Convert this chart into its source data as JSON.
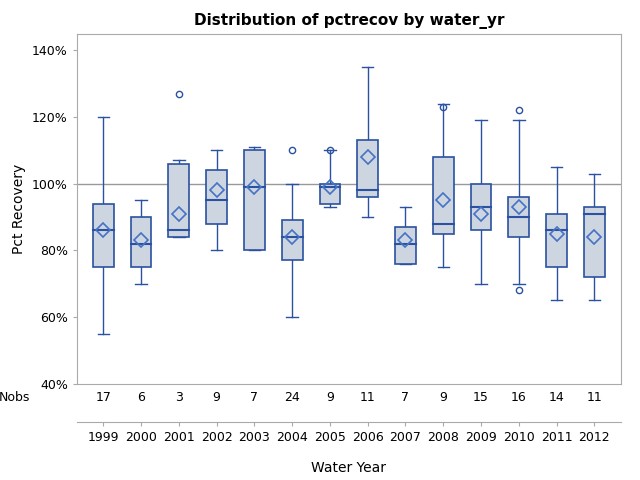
{
  "title": "Distribution of pctrecov by water_yr",
  "xlabel": "Water Year",
  "ylabel": "Pct Recovery",
  "years": [
    1999,
    2000,
    2001,
    2002,
    2003,
    2004,
    2005,
    2006,
    2007,
    2008,
    2009,
    2010,
    2011,
    2012
  ],
  "nobs": [
    17,
    6,
    3,
    9,
    7,
    24,
    9,
    11,
    7,
    9,
    15,
    16,
    14,
    11
  ],
  "q1": [
    75,
    75,
    84,
    88,
    80,
    77,
    94,
    96,
    76,
    85,
    86,
    84,
    75,
    72
  ],
  "median": [
    86,
    82,
    86,
    95,
    99,
    84,
    99,
    98,
    82,
    88,
    93,
    90,
    86,
    91
  ],
  "q3": [
    94,
    90,
    106,
    104,
    110,
    89,
    100,
    113,
    87,
    108,
    100,
    96,
    91,
    93
  ],
  "whislo": [
    55,
    70,
    84,
    80,
    80,
    60,
    93,
    90,
    76,
    75,
    70,
    70,
    65,
    65
  ],
  "whishi": [
    120,
    95,
    107,
    110,
    111,
    100,
    110,
    135,
    93,
    124,
    119,
    119,
    105,
    103
  ],
  "means": [
    86,
    83,
    91,
    98,
    99,
    84,
    99,
    108,
    83,
    95,
    91,
    93,
    85,
    84
  ],
  "fliers_x": [
    2001,
    2004,
    2005,
    2008,
    2010,
    2010
  ],
  "fliers_y": [
    127,
    110,
    110,
    123,
    122,
    68
  ],
  "ref_line": 100,
  "ylim": [
    40,
    145
  ],
  "yticks": [
    40,
    60,
    80,
    100,
    120,
    140
  ],
  "yticklabels": [
    "40%",
    "60%",
    "80%",
    "100%",
    "120%",
    "140%"
  ],
  "box_facecolor": "#cdd5e0",
  "box_edgecolor": "#2a52a0",
  "whisker_color": "#2a52a0",
  "median_color": "#2a52a0",
  "mean_color": "#4472c4",
  "flier_color": "#2a52a0",
  "ref_line_color": "#999999",
  "box_width": 0.55
}
